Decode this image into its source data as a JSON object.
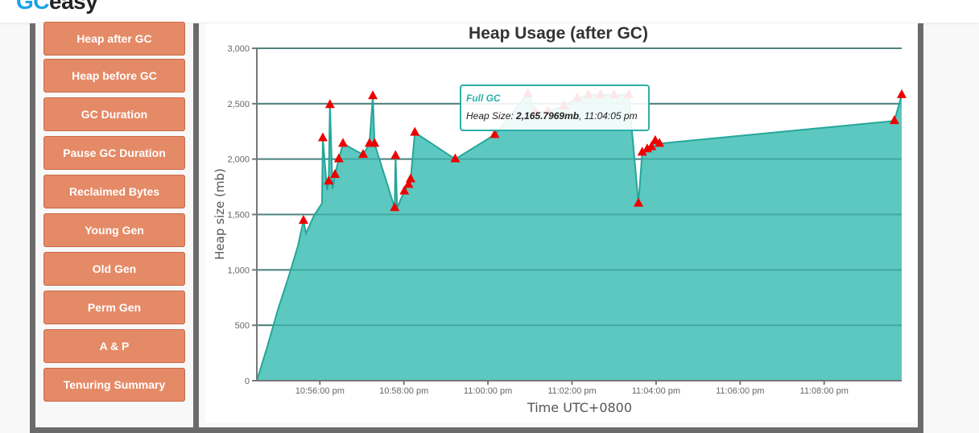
{
  "header": {
    "logo_prefix": "GC",
    "logo_suffix": "easy"
  },
  "sidebar": {
    "items": [
      {
        "label": "Heap after GC"
      },
      {
        "label": "Heap before GC"
      },
      {
        "label": "GC Duration"
      },
      {
        "label": "Pause GC Duration"
      },
      {
        "label": "Reclaimed Bytes"
      },
      {
        "label": "Young Gen"
      },
      {
        "label": "Old Gen"
      },
      {
        "label": "Perm Gen"
      },
      {
        "label": "A & P"
      },
      {
        "label": "Tenuring Summary"
      }
    ]
  },
  "tooltip": {
    "title": "Full GC",
    "label": "Heap Size: ",
    "value": "2,165.7969mb",
    "time": ", 11:04:05 pm"
  },
  "colors": {
    "area_fill": "#5cc8c0",
    "area_line": "#26a69a",
    "marker": "#ee0000",
    "button": "#e58a66"
  },
  "chart_data": {
    "type": "area",
    "title": "Heap Usage (after GC)",
    "xlabel": "Time UTC+0800",
    "ylabel": "Heap size (mb)",
    "ylim": [
      0,
      3000
    ],
    "yticks": [
      0,
      500,
      1000,
      1500,
      2000,
      2500,
      3000
    ],
    "ytick_labels": [
      "0",
      "500",
      "1,000",
      "1,500",
      "2,000",
      "2,500",
      "3,000"
    ],
    "xtick_labels": [
      "10:56:00 pm",
      "10:58:00 pm",
      "11:00:00 pm",
      "11:02:00 pm",
      "11:04:00 pm",
      "11:06:00 pm",
      "11:08:00 pm"
    ],
    "grid": true,
    "legend": "none",
    "x_minutes_from_1054_30": true,
    "series": [
      {
        "name": "Heap after GC",
        "points": [
          [
            0.0,
            0
          ],
          [
            0.25,
            310
          ],
          [
            0.5,
            640
          ],
          [
            0.75,
            930
          ],
          [
            0.98,
            1220
          ],
          [
            1.11,
            1445
          ],
          [
            1.17,
            1330
          ],
          [
            1.36,
            1490
          ],
          [
            1.55,
            1600
          ],
          [
            1.57,
            2190
          ],
          [
            1.67,
            1720
          ],
          [
            1.71,
            1800
          ],
          [
            1.74,
            2490
          ],
          [
            1.8,
            1730
          ],
          [
            1.86,
            1860
          ],
          [
            1.95,
            2000
          ],
          [
            2.05,
            2140
          ],
          [
            2.53,
            2040
          ],
          [
            2.68,
            2140
          ],
          [
            2.76,
            2570
          ],
          [
            2.8,
            2140
          ],
          [
            3.28,
            1560
          ],
          [
            3.3,
            2030
          ],
          [
            3.34,
            1560
          ],
          [
            3.51,
            1710
          ],
          [
            3.61,
            1770
          ],
          [
            3.66,
            1820
          ],
          [
            3.76,
            2240
          ],
          [
            4.72,
            2000
          ],
          [
            5.66,
            2220
          ],
          [
            6.45,
            2590
          ],
          [
            6.64,
            2420
          ],
          [
            6.93,
            2430
          ],
          [
            7.31,
            2480
          ],
          [
            7.62,
            2550
          ],
          [
            7.89,
            2580
          ],
          [
            8.18,
            2580
          ],
          [
            8.5,
            2580
          ],
          [
            8.85,
            2580
          ],
          [
            9.08,
            1600
          ],
          [
            9.17,
            2060
          ],
          [
            9.29,
            2090
          ],
          [
            9.39,
            2110
          ],
          [
            9.48,
            2166
          ],
          [
            9.58,
            2140
          ],
          [
            15.17,
            2345
          ],
          [
            15.36,
            2580
          ]
        ],
        "full_gc_markers": [
          [
            1.11,
            1445
          ],
          [
            1.57,
            2190
          ],
          [
            1.71,
            1800
          ],
          [
            1.74,
            2490
          ],
          [
            1.86,
            1860
          ],
          [
            1.95,
            2000
          ],
          [
            2.05,
            2140
          ],
          [
            2.53,
            2040
          ],
          [
            2.68,
            2140
          ],
          [
            2.76,
            2570
          ],
          [
            2.8,
            2140
          ],
          [
            3.28,
            1560
          ],
          [
            3.3,
            2030
          ],
          [
            3.51,
            1710
          ],
          [
            3.61,
            1770
          ],
          [
            3.66,
            1820
          ],
          [
            3.76,
            2240
          ],
          [
            4.72,
            2000
          ],
          [
            5.66,
            2220
          ],
          [
            6.45,
            2590
          ],
          [
            6.64,
            2420
          ],
          [
            6.93,
            2430
          ],
          [
            7.31,
            2480
          ],
          [
            7.62,
            2550
          ],
          [
            7.89,
            2580
          ],
          [
            8.18,
            2580
          ],
          [
            8.5,
            2580
          ],
          [
            8.85,
            2580
          ],
          [
            9.08,
            1600
          ],
          [
            9.17,
            2060
          ],
          [
            9.29,
            2090
          ],
          [
            9.39,
            2110
          ],
          [
            9.48,
            2166
          ],
          [
            9.58,
            2140
          ],
          [
            15.17,
            2345
          ],
          [
            15.36,
            2580
          ]
        ]
      }
    ]
  }
}
